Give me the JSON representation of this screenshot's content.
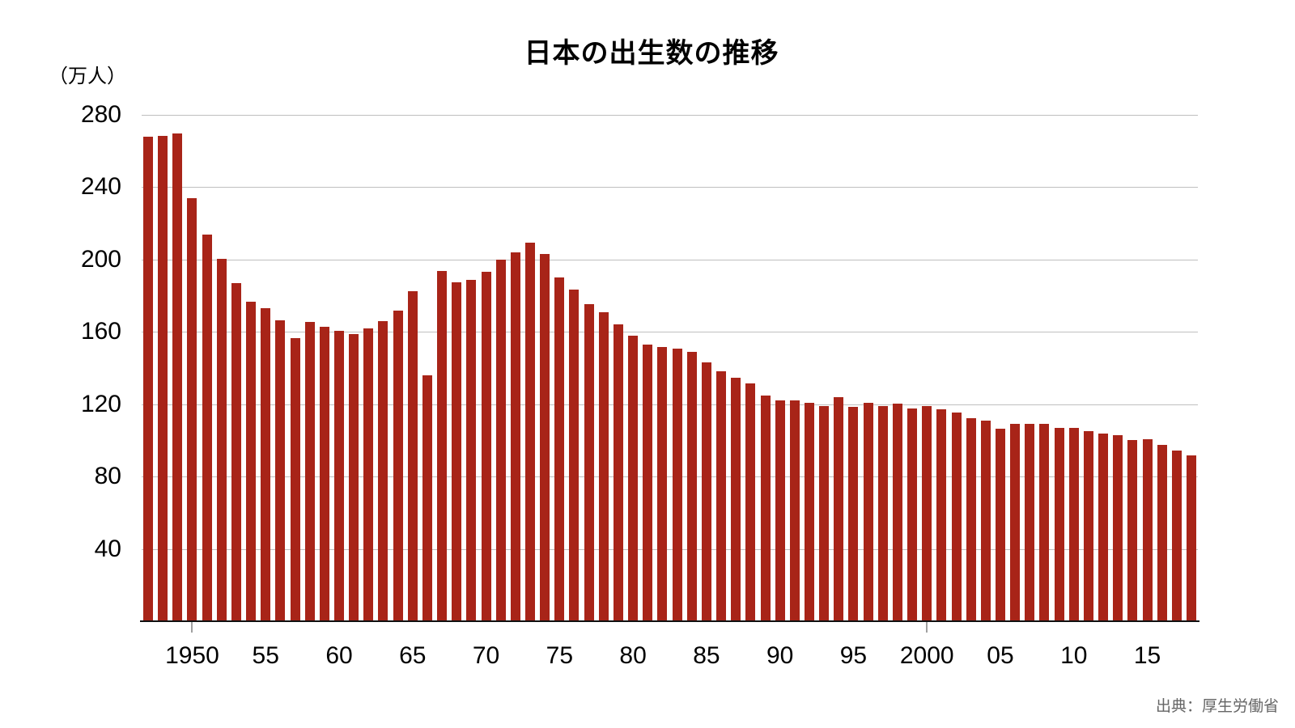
{
  "title": "日本の出生数の推移",
  "y_axis": {
    "unit_label": "（万人）",
    "tick_values": [
      280,
      240,
      200,
      160,
      120,
      80,
      40
    ]
  },
  "x_axis": {
    "tick_labels": [
      {
        "year": 1950,
        "label": "1950"
      },
      {
        "year": 1955,
        "label": "55"
      },
      {
        "year": 1960,
        "label": "60"
      },
      {
        "year": 1965,
        "label": "65"
      },
      {
        "year": 1970,
        "label": "70"
      },
      {
        "year": 1975,
        "label": "75"
      },
      {
        "year": 1980,
        "label": "80"
      },
      {
        "year": 1985,
        "label": "85"
      },
      {
        "year": 1990,
        "label": "90"
      },
      {
        "year": 1995,
        "label": "95"
      },
      {
        "year": 2000,
        "label": "2000"
      },
      {
        "year": 2005,
        "label": "05"
      },
      {
        "year": 2010,
        "label": "10"
      },
      {
        "year": 2015,
        "label": "15"
      }
    ],
    "axis_tick_mark_years": [
      1950,
      2000
    ]
  },
  "source": "出典：厚生労働省",
  "colors": {
    "bar": "#a82418",
    "gridline": "#bfbfbf",
    "axis_line": "#111111",
    "axis_tick": "#a0a0a0",
    "text": "#000000",
    "source_text": "#666666",
    "background": "#ffffff"
  },
  "chart_data": {
    "type": "bar",
    "title": "日本の出生数の推移",
    "ylabel": "（万人）",
    "xlabel": "",
    "ylim": [
      0,
      280
    ],
    "grid": true,
    "legend": false,
    "categories": [
      1947,
      1948,
      1949,
      1950,
      1951,
      1952,
      1953,
      1954,
      1955,
      1956,
      1957,
      1958,
      1959,
      1960,
      1961,
      1962,
      1963,
      1964,
      1965,
      1966,
      1967,
      1968,
      1969,
      1970,
      1971,
      1972,
      1973,
      1974,
      1975,
      1976,
      1977,
      1978,
      1979,
      1980,
      1981,
      1982,
      1983,
      1984,
      1985,
      1986,
      1987,
      1988,
      1989,
      1990,
      1991,
      1992,
      1993,
      1994,
      1995,
      1996,
      1997,
      1998,
      1999,
      2000,
      2001,
      2002,
      2003,
      2004,
      2005,
      2006,
      2007,
      2008,
      2009,
      2010,
      2011,
      2012,
      2013,
      2014,
      2015,
      2016,
      2017,
      2018
    ],
    "values": [
      267.9,
      268.2,
      269.7,
      233.8,
      213.8,
      200.5,
      186.8,
      176.9,
      173.1,
      166.5,
      156.7,
      165.3,
      162.6,
      160.6,
      158.9,
      161.8,
      165.9,
      171.7,
      182.4,
      136.1,
      193.6,
      187.2,
      188.9,
      193.4,
      200.1,
      203.9,
      209.2,
      203.0,
      190.1,
      183.3,
      175.5,
      170.9,
      164.3,
      157.7,
      152.9,
      151.5,
      150.9,
      148.9,
      143.2,
      138.3,
      134.7,
      131.4,
      124.7,
      122.2,
      122.3,
      120.9,
      118.8,
      123.8,
      118.7,
      120.7,
      119.2,
      120.3,
      117.8,
      119.1,
      117.1,
      115.4,
      112.4,
      111.1,
      106.3,
      109.3,
      109.0,
      109.1,
      107.0,
      107.1,
      105.1,
      103.7,
      103.0,
      100.4,
      100.6,
      97.7,
      94.6,
      91.8
    ]
  }
}
